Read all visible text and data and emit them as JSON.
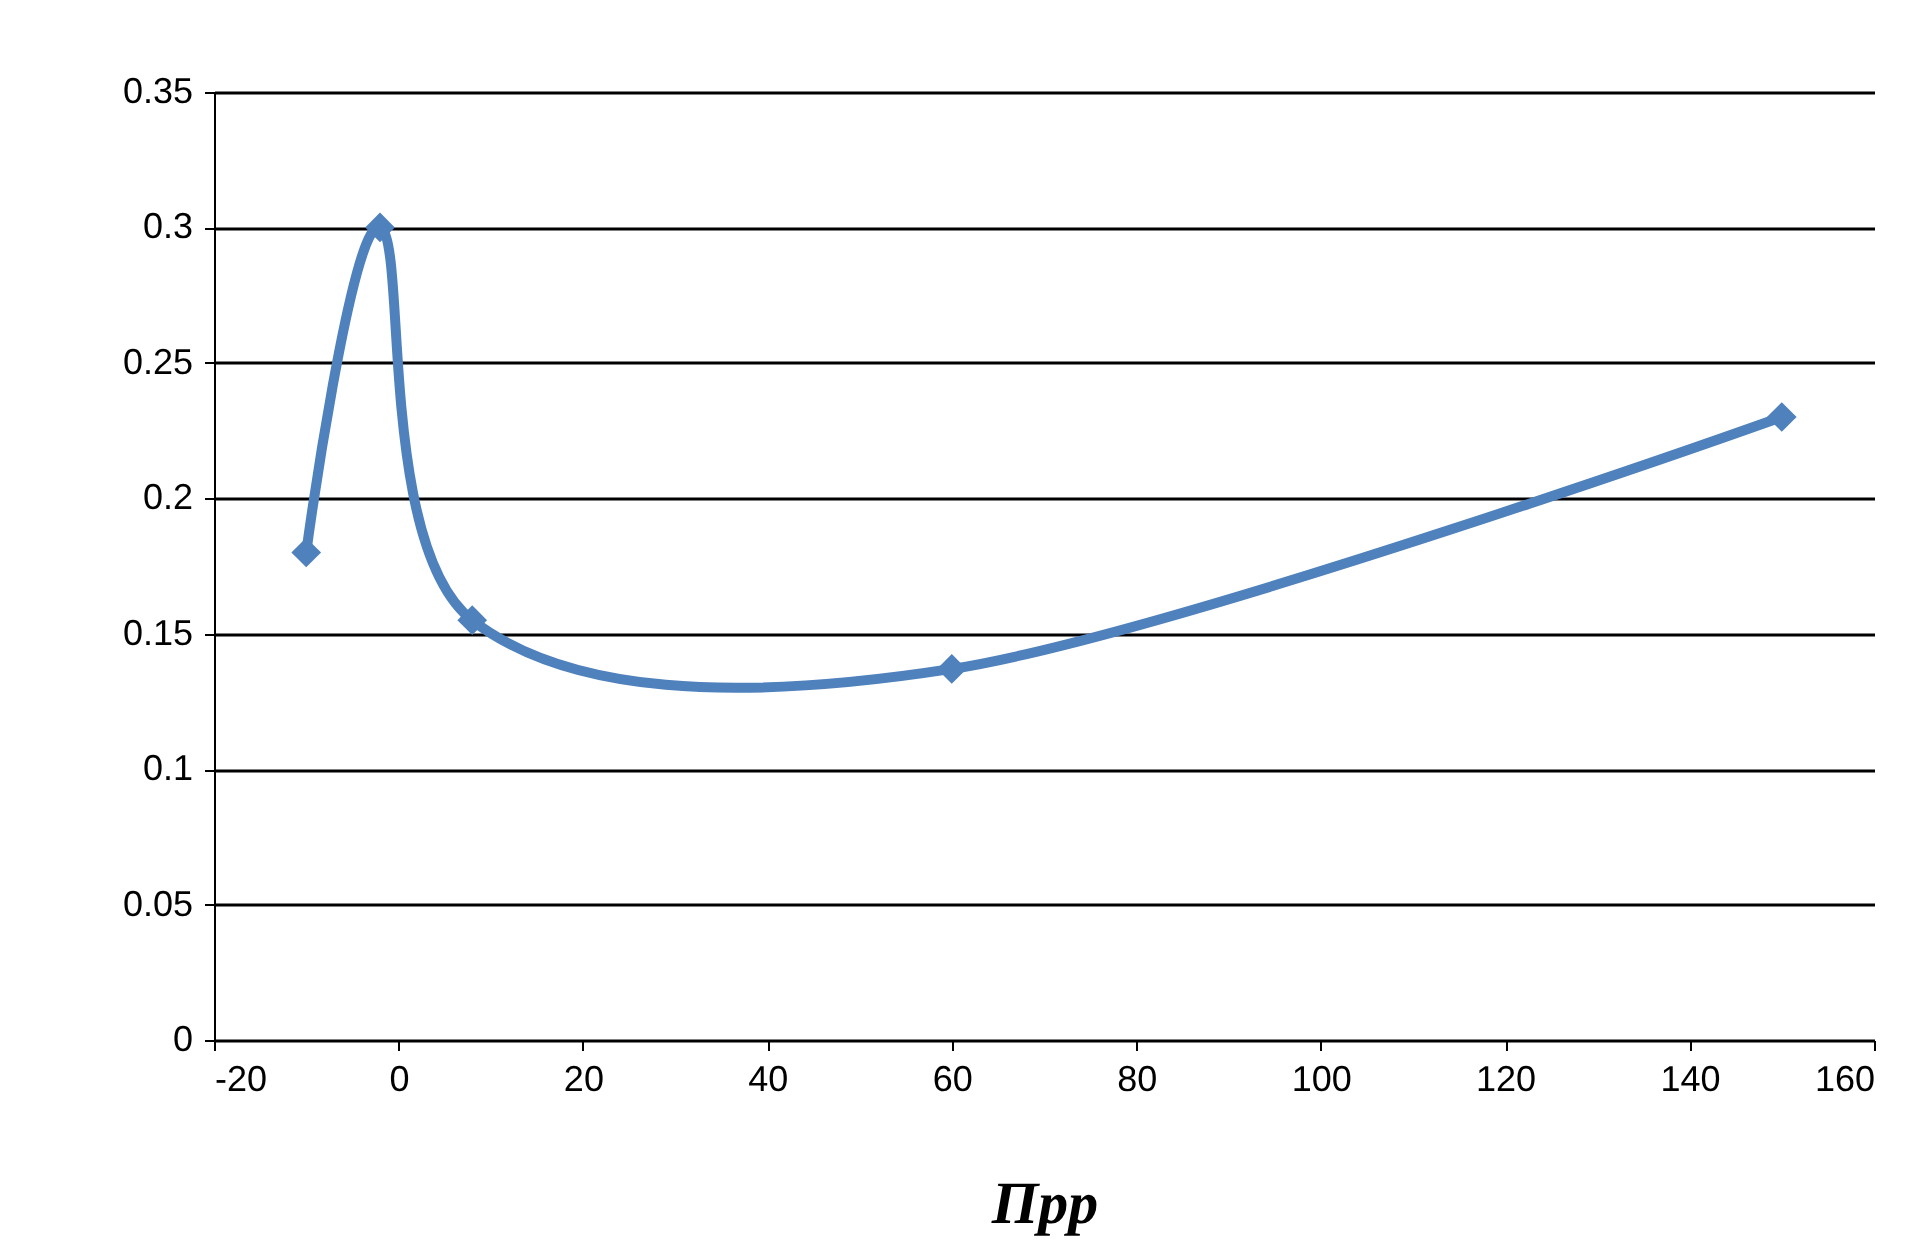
{
  "chart_data": {
    "type": "line",
    "xlabel": "Прр",
    "x": [
      -10,
      -2,
      8,
      60,
      150
    ],
    "series": [
      {
        "color": "#4f81bd",
        "values": [
          0.18,
          0.3,
          0.155,
          0.137,
          0.23
        ]
      }
    ],
    "xlim": [
      -20,
      160
    ],
    "xticks": [
      -20,
      0,
      20,
      40,
      60,
      80,
      100,
      120,
      140,
      160
    ],
    "ylim": [
      0,
      0.35
    ],
    "yticks": [
      0,
      0.05,
      0.1,
      0.15,
      0.2,
      0.25,
      0.3,
      0.35
    ],
    "grid": "y",
    "marker": "diamond",
    "legend": false
  }
}
